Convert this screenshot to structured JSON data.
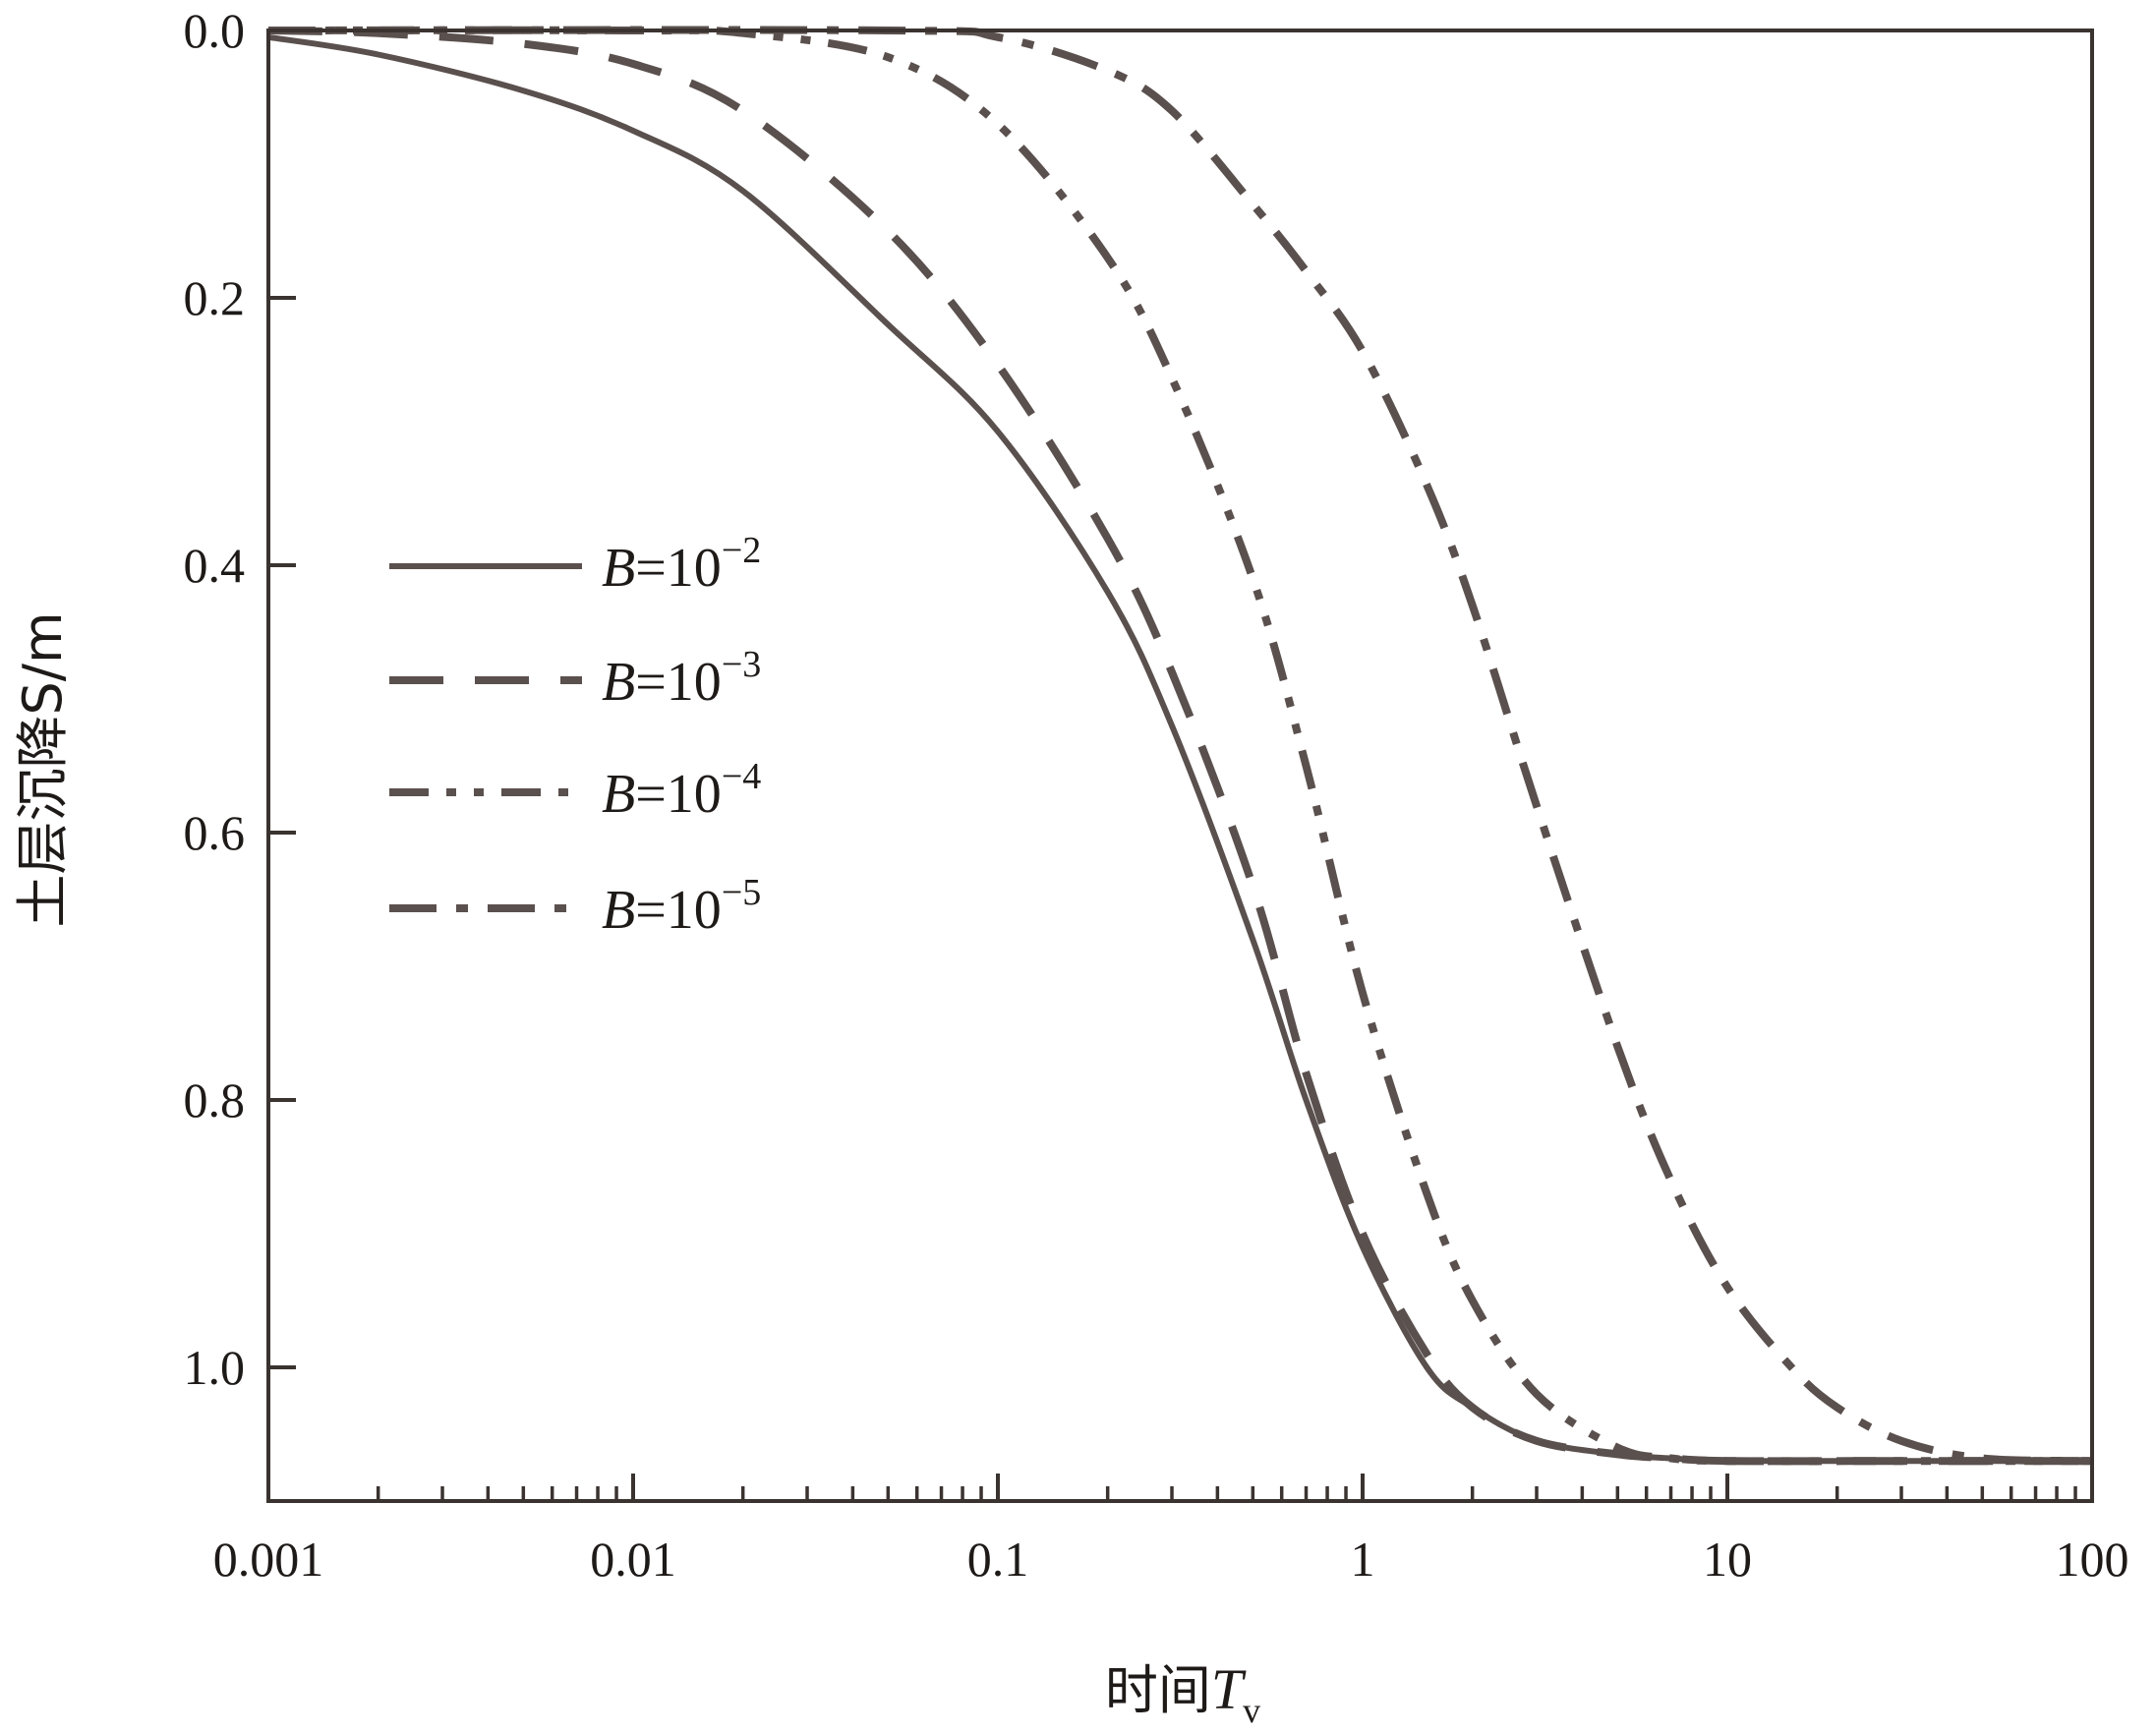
{
  "chart_data": {
    "type": "line",
    "title": "",
    "xlabel": "时间",
    "xlabel_symbol": "T",
    "xlabel_subscript": "v",
    "ylabel": "土层沉降S/m",
    "x_scale": "log",
    "xlim": [
      0.001,
      100
    ],
    "ylim": [
      1.1,
      0.0
    ],
    "y_inverted": true,
    "x_ticks": [
      "0.001",
      "0.01",
      "0.1",
      "1",
      "10",
      "100"
    ],
    "y_ticks": [
      "0.0",
      "0.2",
      "0.4",
      "0.6",
      "0.8",
      "1.0"
    ],
    "grid": false,
    "legend_position": "left",
    "line_color": "#5a504d",
    "series": [
      {
        "name": "B=10^-2",
        "legend": {
          "prefix": "B",
          "base": "=10",
          "exp": "−2"
        },
        "dash": "solid",
        "x": [
          0.001,
          0.002,
          0.005,
          0.01,
          0.02,
          0.05,
          0.1,
          0.2,
          0.3,
          0.5,
          0.7,
          1,
          1.5,
          2,
          3,
          5,
          7,
          10,
          30,
          100
        ],
        "y": [
          0.005,
          0.018,
          0.045,
          0.075,
          0.12,
          0.22,
          0.3,
          0.42,
          0.52,
          0.68,
          0.8,
          0.91,
          1.0,
          1.03,
          1.055,
          1.065,
          1.068,
          1.07,
          1.07,
          1.07
        ]
      },
      {
        "name": "B=10^-3",
        "legend": {
          "prefix": "B",
          "base": "=10",
          "exp": "−3"
        },
        "dash": "dashed",
        "x": [
          0.001,
          0.002,
          0.005,
          0.01,
          0.02,
          0.05,
          0.1,
          0.2,
          0.3,
          0.5,
          0.7,
          1,
          1.5,
          2,
          3,
          5,
          7,
          10,
          30,
          100
        ],
        "y": [
          0.0,
          0.002,
          0.01,
          0.025,
          0.06,
          0.15,
          0.25,
          0.38,
          0.48,
          0.64,
          0.78,
          0.9,
          0.99,
          1.03,
          1.055,
          1.065,
          1.068,
          1.07,
          1.07,
          1.07
        ]
      },
      {
        "name": "B=10^-4",
        "legend": {
          "prefix": "B",
          "base": "=10",
          "exp": "−4"
        },
        "dash": "dash-dot-dot",
        "x": [
          0.001,
          0.01,
          0.02,
          0.05,
          0.1,
          0.2,
          0.3,
          0.5,
          0.7,
          1,
          1.5,
          2,
          3,
          5,
          7,
          10,
          30,
          100
        ],
        "y": [
          0.0,
          0.0,
          0.002,
          0.02,
          0.07,
          0.17,
          0.26,
          0.41,
          0.55,
          0.72,
          0.87,
          0.95,
          1.02,
          1.06,
          1.068,
          1.07,
          1.07,
          1.07
        ]
      },
      {
        "name": "B=10^-5",
        "legend": {
          "prefix": "B",
          "base": "=10",
          "exp": "−5"
        },
        "dash": "dash-dot",
        "x": [
          0.001,
          0.05,
          0.1,
          0.2,
          0.3,
          0.5,
          0.7,
          1,
          1.5,
          2,
          3,
          5,
          7,
          10,
          15,
          20,
          30,
          50,
          100
        ],
        "y": [
          0.0,
          0.0,
          0.005,
          0.03,
          0.06,
          0.13,
          0.18,
          0.24,
          0.34,
          0.43,
          0.58,
          0.76,
          0.86,
          0.94,
          1.0,
          1.03,
          1.055,
          1.068,
          1.07
        ]
      }
    ]
  }
}
